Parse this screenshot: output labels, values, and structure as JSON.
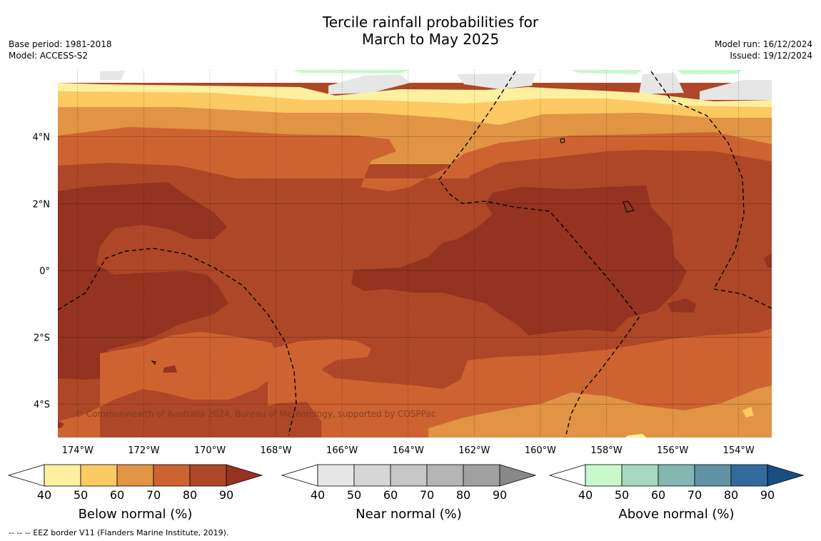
{
  "header": {
    "title_line1": "Tercile rainfall probabilities for",
    "title_line2": "March to May 2025",
    "base_period": "Base period: 1981-2018",
    "model": "Model: ACCESS-S2",
    "model_run": "Model run: 16/12/2024",
    "issued": "Issued: 19/12/2024"
  },
  "map": {
    "lon_ticks": [
      "174°W",
      "172°W",
      "170°W",
      "168°W",
      "166°W",
      "164°W",
      "162°W",
      "160°W",
      "158°W",
      "156°W",
      "154°W"
    ],
    "lat_ticks": [
      "4°N",
      "2°N",
      "0°",
      "2°S",
      "4°S"
    ],
    "copyright": "© Commonwealth of Australia 2024, Bureau of Meteorology, supported by COSPPac",
    "extent": {
      "lon_min": -174.6,
      "lon_max": -153.0,
      "lat_min": -5.0,
      "lat_max": 6.0
    }
  },
  "colorbars": [
    {
      "label": "Below normal (%)",
      "ticks": [
        "40",
        "50",
        "60",
        "70",
        "80",
        "90"
      ],
      "colors": [
        "#fff0a0",
        "#fdc963",
        "#e09444",
        "#cd6331",
        "#ae4727",
        "#943320"
      ]
    },
    {
      "label": "Near normal (%)",
      "ticks": [
        "40",
        "50",
        "60",
        "70",
        "80",
        "90"
      ],
      "colors": [
        "#e6e6e6",
        "#d6d6d6",
        "#c6c6c6",
        "#b4b4b4",
        "#a0a0a0",
        "#888888"
      ]
    },
    {
      "label": "Above normal (%)",
      "ticks": [
        "40",
        "50",
        "60",
        "70",
        "80",
        "90"
      ],
      "colors": [
        "#c9f8cc",
        "#a4d9bd",
        "#82b7b3",
        "#5f93a4",
        "#336a9e",
        "#1a4d80"
      ]
    }
  ],
  "footnote": "--  --  -- EEZ border V11 (Flanders Marine Institute, 2019)."
}
